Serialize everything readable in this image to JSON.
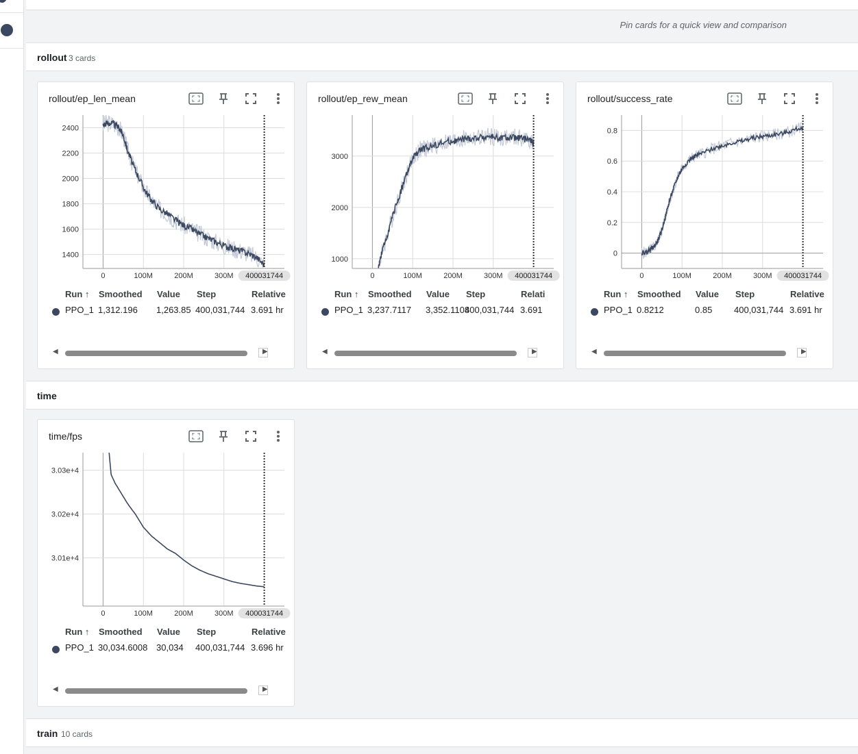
{
  "page": {
    "pin_hint": "Pin cards for a quick view and comparison"
  },
  "colors": {
    "run": "#3b4860",
    "raw": "#c3c9d6",
    "grid": "#dcdcdc"
  },
  "groups": [
    {
      "name": "rollout",
      "count": "3 cards"
    },
    {
      "name": "time",
      "count": ""
    },
    {
      "name": "train",
      "count": "10 cards"
    }
  ],
  "table_headers": {
    "run": "Run",
    "smoothed": "Smoothed",
    "value": "Value",
    "step": "Step",
    "relative": "Relative"
  },
  "icons": [
    "fit-domain-icon",
    "pin-icon",
    "fullscreen-icon",
    "more-vert-icon"
  ],
  "cards": [
    {
      "title": "rollout/ep_len_mean",
      "step_badge": "400031744",
      "row": {
        "run": "PPO_1",
        "smoothed": "1,312.196",
        "value": "1,263.85",
        "step": "400,031,744",
        "relative": "3.691 hr"
      },
      "relative_header": "Relative"
    },
    {
      "title": "rollout/ep_rew_mean",
      "step_badge": "400031744",
      "row": {
        "run": "PPO_1",
        "smoothed": "3,237.7117",
        "value": "3,352.1108",
        "step": "400,031,744",
        "relative": "3.691"
      },
      "relative_header": "Relati"
    },
    {
      "title": "rollout/success_rate",
      "step_badge": "400031744",
      "row": {
        "run": "PPO_1",
        "smoothed": "0.8212",
        "value": "0.85",
        "step": "400,031,744",
        "relative": "3.691 hr"
      },
      "relative_header": "Relative"
    },
    {
      "title": "time/fps",
      "step_badge": "400031744",
      "row": {
        "run": "PPO_1",
        "smoothed": "30,034.6008",
        "value": "30,034",
        "step": "400,031,744",
        "relative": "3.696 hr"
      },
      "relative_header": "Relative"
    }
  ],
  "chart_data": [
    {
      "type": "line",
      "title": "rollout/ep_len_mean",
      "x_ticks": [
        "0",
        "100M",
        "200M",
        "300M"
      ],
      "y_ticks": [
        "1400",
        "1600",
        "1800",
        "2000",
        "2200",
        "2400"
      ],
      "xlim": [
        -50000000,
        450000000
      ],
      "ylim": [
        1290,
        2500
      ],
      "series": [
        {
          "name": "PPO_1",
          "x": [
            0,
            10000000,
            25000000,
            40000000,
            50000000,
            60000000,
            75000000,
            90000000,
            105000000,
            120000000,
            140000000,
            160000000,
            180000000,
            200000000,
            220000000,
            240000000,
            260000000,
            280000000,
            300000000,
            320000000,
            340000000,
            360000000,
            380000000,
            400000000
          ],
          "y": [
            2420,
            2440,
            2430,
            2400,
            2340,
            2230,
            2100,
            2000,
            1900,
            1830,
            1760,
            1720,
            1670,
            1630,
            1600,
            1560,
            1530,
            1500,
            1470,
            1450,
            1430,
            1410,
            1380,
            1320
          ]
        }
      ],
      "step_marker": 400031744
    },
    {
      "type": "line",
      "title": "rollout/ep_rew_mean",
      "x_ticks": [
        "0",
        "100M",
        "200M",
        "300M"
      ],
      "y_ticks": [
        "1000",
        "2000",
        "3000"
      ],
      "xlim": [
        -50000000,
        450000000
      ],
      "ylim": [
        810,
        3800
      ],
      "series": [
        {
          "name": "PPO_1",
          "x": [
            15000000,
            25000000,
            40000000,
            55000000,
            70000000,
            85000000,
            100000000,
            115000000,
            130000000,
            150000000,
            170000000,
            190000000,
            210000000,
            230000000,
            250000000,
            270000000,
            290000000,
            310000000,
            330000000,
            350000000,
            370000000,
            390000000,
            400000000
          ],
          "y": [
            850,
            1150,
            1550,
            1950,
            2300,
            2650,
            2950,
            3100,
            3150,
            3200,
            3250,
            3280,
            3300,
            3330,
            3340,
            3360,
            3380,
            3360,
            3350,
            3360,
            3340,
            3320,
            3240
          ]
        }
      ],
      "step_marker": 400031744
    },
    {
      "type": "line",
      "title": "rollout/success_rate",
      "x_ticks": [
        "0",
        "100M",
        "200M",
        "300M"
      ],
      "y_ticks": [
        "0",
        "0.2",
        "0.4",
        "0.6",
        "0.8"
      ],
      "xlim": [
        -50000000,
        450000000
      ],
      "ylim": [
        -0.1,
        0.9
      ],
      "series": [
        {
          "name": "PPO_1",
          "x": [
            0,
            10000000,
            20000000,
            30000000,
            40000000,
            50000000,
            60000000,
            70000000,
            80000000,
            90000000,
            100000000,
            115000000,
            130000000,
            150000000,
            175000000,
            200000000,
            225000000,
            250000000,
            275000000,
            300000000,
            325000000,
            350000000,
            375000000,
            400000000
          ],
          "y": [
            0,
            0.005,
            0.02,
            0.04,
            0.08,
            0.15,
            0.25,
            0.35,
            0.43,
            0.5,
            0.55,
            0.6,
            0.63,
            0.65,
            0.68,
            0.7,
            0.72,
            0.73,
            0.75,
            0.76,
            0.77,
            0.78,
            0.8,
            0.82
          ]
        }
      ],
      "step_marker": 400031744
    },
    {
      "type": "line",
      "title": "time/fps",
      "x_ticks": [
        "0",
        "100M",
        "200M",
        "300M"
      ],
      "y_ticks": [
        "3.01e+4",
        "3.02e+4",
        "3.03e+4"
      ],
      "xlim": [
        -50000000,
        450000000
      ],
      "ylim": [
        29990,
        30340
      ],
      "series": [
        {
          "name": "PPO_1",
          "x": [
            15000000,
            20000000,
            30000000,
            40000000,
            50000000,
            60000000,
            70000000,
            80000000,
            100000000,
            120000000,
            140000000,
            160000000,
            180000000,
            200000000,
            220000000,
            240000000,
            260000000,
            280000000,
            300000000,
            320000000,
            340000000,
            360000000,
            380000000,
            400000000
          ],
          "y": [
            30340,
            30290,
            30270,
            30255,
            30240,
            30225,
            30212,
            30200,
            30170,
            30150,
            30135,
            30120,
            30110,
            30095,
            30082,
            30072,
            30064,
            30058,
            30052,
            30046,
            30042,
            30039,
            30036,
            30034
          ]
        }
      ],
      "step_marker": 400031744
    }
  ]
}
